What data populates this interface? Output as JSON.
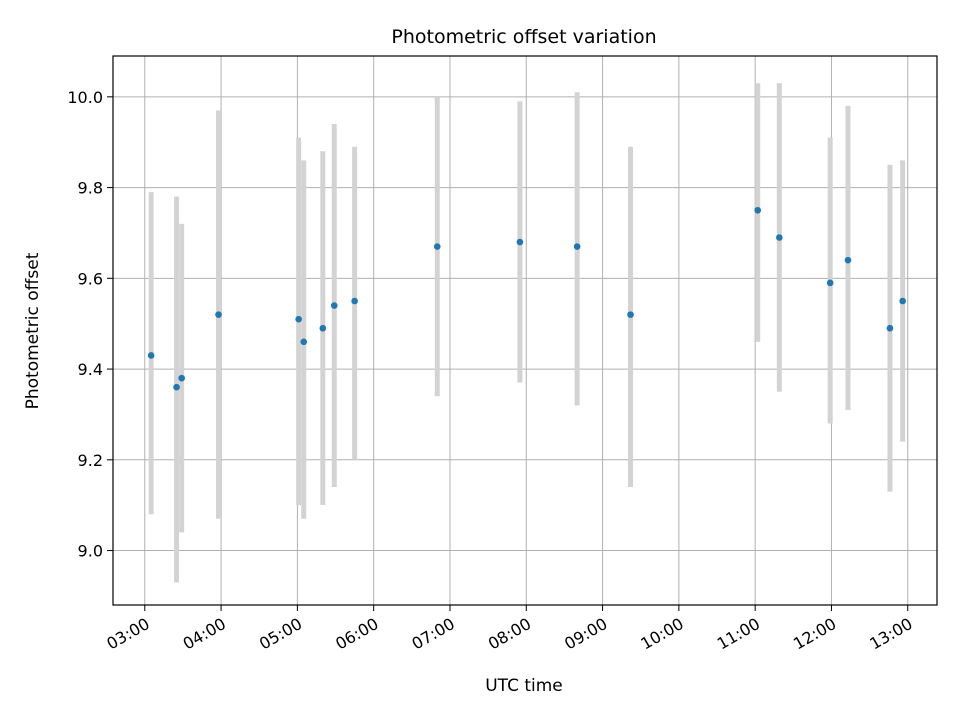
{
  "chart_data": {
    "type": "scatter",
    "title": "Photometric offset variation",
    "xlabel": "UTC time",
    "ylabel": "Photometric offset",
    "x_tick_labels": [
      "03:00",
      "04:00",
      "05:00",
      "06:00",
      "07:00",
      "08:00",
      "09:00",
      "10:00",
      "11:00",
      "12:00",
      "13:00"
    ],
    "y_tick_labels": [
      "9.0",
      "9.2",
      "9.4",
      "9.6",
      "9.8",
      "10.0"
    ],
    "y_ticks": [
      9.0,
      9.2,
      9.4,
      9.6,
      9.8,
      10.0
    ],
    "ylim": [
      8.88,
      10.09
    ],
    "xlim": [
      "02:35",
      "13:23"
    ],
    "grid": true,
    "point_color": "#1f77b4",
    "errorbar_color": "#d3d3d3",
    "points": [
      {
        "x": "03:05",
        "y": 9.43,
        "yerr_low": 9.08,
        "yerr_high": 9.79
      },
      {
        "x": "03:25",
        "y": 9.36,
        "yerr_low": 8.93,
        "yerr_high": 9.78
      },
      {
        "x": "03:29",
        "y": 9.38,
        "yerr_low": 9.04,
        "yerr_high": 9.72
      },
      {
        "x": "03:58",
        "y": 9.52,
        "yerr_low": 9.07,
        "yerr_high": 9.97
      },
      {
        "x": "05:01",
        "y": 9.51,
        "yerr_low": 9.1,
        "yerr_high": 9.91
      },
      {
        "x": "05:05",
        "y": 9.46,
        "yerr_low": 9.07,
        "yerr_high": 9.86
      },
      {
        "x": "05:20",
        "y": 9.49,
        "yerr_low": 9.1,
        "yerr_high": 9.88
      },
      {
        "x": "05:29",
        "y": 9.54,
        "yerr_low": 9.14,
        "yerr_high": 9.94
      },
      {
        "x": "05:45",
        "y": 9.55,
        "yerr_low": 9.2,
        "yerr_high": 9.89
      },
      {
        "x": "06:50",
        "y": 9.67,
        "yerr_low": 9.34,
        "yerr_high": 10.0
      },
      {
        "x": "07:55",
        "y": 9.68,
        "yerr_low": 9.37,
        "yerr_high": 9.99
      },
      {
        "x": "08:40",
        "y": 9.67,
        "yerr_low": 9.32,
        "yerr_high": 10.01
      },
      {
        "x": "09:22",
        "y": 9.52,
        "yerr_low": 9.14,
        "yerr_high": 9.89
      },
      {
        "x": "11:02",
        "y": 9.75,
        "yerr_low": 9.46,
        "yerr_high": 10.03
      },
      {
        "x": "11:19",
        "y": 9.69,
        "yerr_low": 9.35,
        "yerr_high": 10.03
      },
      {
        "x": "11:59",
        "y": 9.59,
        "yerr_low": 9.28,
        "yerr_high": 9.91
      },
      {
        "x": "12:13",
        "y": 9.64,
        "yerr_low": 9.31,
        "yerr_high": 9.98
      },
      {
        "x": "12:46",
        "y": 9.49,
        "yerr_low": 9.13,
        "yerr_high": 9.85
      },
      {
        "x": "12:56",
        "y": 9.55,
        "yerr_low": 9.24,
        "yerr_high": 9.86
      }
    ]
  }
}
